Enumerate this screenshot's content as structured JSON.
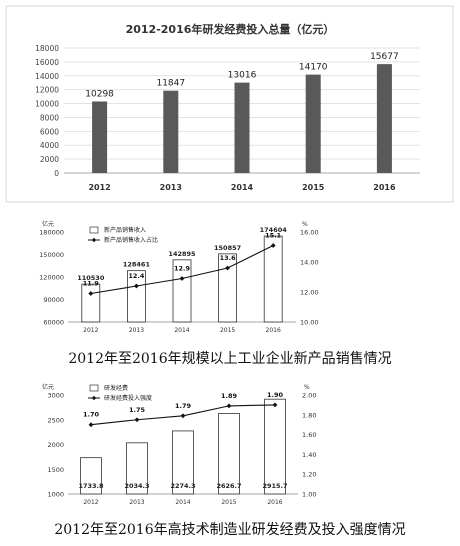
{
  "chart_data": [
    {
      "type": "bar",
      "title": "2012-2016年研发经费投入总量（亿元）",
      "categories": [
        "2012",
        "2013",
        "2014",
        "2015",
        "2016"
      ],
      "values": [
        10298,
        11847,
        13016,
        14170,
        15677
      ],
      "ylim": [
        0,
        18000
      ],
      "yticks": [
        0,
        2000,
        4000,
        6000,
        8000,
        10000,
        12000,
        14000,
        16000,
        18000
      ],
      "grid": true,
      "colors": {
        "bar": "#595959"
      }
    },
    {
      "type": "bar",
      "caption": "2012年至2016年规模以上工业企业新产品销售情况",
      "left_unit": "亿元",
      "right_unit": "%",
      "categories": [
        "2012",
        "2013",
        "2014",
        "2015",
        "2016"
      ],
      "series": [
        {
          "name": "新产品销售收入",
          "type": "bar",
          "values": [
            110530,
            128461,
            142895,
            150857,
            174604
          ]
        },
        {
          "name": "新产品销售收入占比",
          "type": "line",
          "axis": "right",
          "values": [
            11.9,
            12.4,
            12.9,
            13.6,
            15.1
          ]
        }
      ],
      "ylim": [
        60000,
        180000
      ],
      "yticks": [
        60000,
        90000,
        120000,
        150000,
        180000
      ],
      "y2lim": [
        10,
        16
      ],
      "y2ticks": [
        "10.00",
        "12.00",
        "14.00",
        "16.00"
      ],
      "legend": "top-left"
    },
    {
      "type": "bar",
      "caption": "2012年至2016年高技术制造业研发经费及投入强度情况",
      "left_unit": "亿元",
      "right_unit": "%",
      "categories": [
        "2012",
        "2013",
        "2014",
        "2015",
        "2016"
      ],
      "series": [
        {
          "name": "研发经费",
          "type": "bar",
          "values": [
            1733.8,
            2034.3,
            2274.3,
            2626.7,
            2915.7
          ]
        },
        {
          "name": "研发经费投入强度",
          "type": "line",
          "axis": "right",
          "values": [
            1.7,
            1.75,
            1.79,
            1.89,
            1.9
          ]
        }
      ],
      "ylim": [
        1000,
        3000
      ],
      "yticks": [
        1000,
        1500,
        2000,
        2500,
        3000
      ],
      "y2lim": [
        1.0,
        2.0
      ],
      "y2ticks": [
        "1.00",
        "1.20",
        "1.40",
        "1.60",
        "1.80",
        "2.00"
      ],
      "legend": "top-left"
    }
  ]
}
